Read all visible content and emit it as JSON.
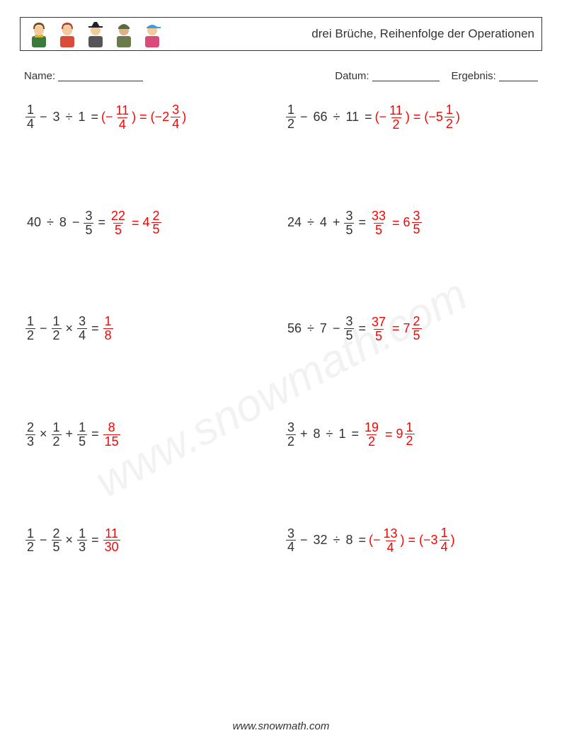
{
  "header": {
    "title": "drei Brüche, Reihenfolge der Operationen"
  },
  "meta": {
    "name_label": "Name:",
    "date_label": "Datum:",
    "result_label": "Ergebnis:"
  },
  "avatars": [
    {
      "skin": "#f4c99b",
      "hair": "#7a4a1d",
      "top": "#3a7a3a",
      "scarf": "#d6b23a"
    },
    {
      "skin": "#f4c99b",
      "hair": "#b6452c",
      "top": "#d94c3a"
    },
    {
      "skin": "#f4c99b",
      "hat": "#222222",
      "top": "#555555"
    },
    {
      "skin": "#e0b08a",
      "helmet": "#5a6a3a",
      "top": "#6a7a4a"
    },
    {
      "skin": "#f4c99b",
      "cap": "#3aa0d9",
      "top": "#d94c7a"
    }
  ],
  "problems": [
    {
      "expr": [
        {
          "t": "frac",
          "n": "1",
          "d": "4"
        },
        {
          "t": "op",
          "v": "−"
        },
        {
          "t": "int",
          "v": "3"
        },
        {
          "t": "op",
          "v": "÷"
        },
        {
          "t": "int",
          "v": "1"
        },
        {
          "t": "op",
          "v": "="
        }
      ],
      "ans": [
        {
          "t": "txt",
          "v": "(−"
        },
        {
          "t": "frac",
          "n": "11",
          "d": "4"
        },
        {
          "t": "txt",
          "v": ") = (−"
        },
        {
          "t": "mixed",
          "w": "2",
          "n": "3",
          "d": "4"
        },
        {
          "t": "txt",
          "v": ")"
        }
      ]
    },
    {
      "expr": [
        {
          "t": "frac",
          "n": "1",
          "d": "2"
        },
        {
          "t": "op",
          "v": "−"
        },
        {
          "t": "int",
          "v": "66"
        },
        {
          "t": "op",
          "v": "÷"
        },
        {
          "t": "int",
          "v": "11"
        },
        {
          "t": "op",
          "v": "="
        }
      ],
      "ans": [
        {
          "t": "txt",
          "v": "(−"
        },
        {
          "t": "frac",
          "n": "11",
          "d": "2"
        },
        {
          "t": "txt",
          "v": ") = (−"
        },
        {
          "t": "mixed",
          "w": "5",
          "n": "1",
          "d": "2"
        },
        {
          "t": "txt",
          "v": ")"
        }
      ]
    },
    {
      "expr": [
        {
          "t": "int",
          "v": "40"
        },
        {
          "t": "op",
          "v": "÷"
        },
        {
          "t": "int",
          "v": "8"
        },
        {
          "t": "op",
          "v": "−"
        },
        {
          "t": "frac",
          "n": "3",
          "d": "5"
        },
        {
          "t": "op",
          "v": "="
        }
      ],
      "ans": [
        {
          "t": "frac",
          "n": "22",
          "d": "5"
        },
        {
          "t": "txt",
          "v": " = "
        },
        {
          "t": "mixed",
          "w": "4",
          "n": "2",
          "d": "5"
        }
      ]
    },
    {
      "expr": [
        {
          "t": "int",
          "v": "24"
        },
        {
          "t": "op",
          "v": "÷"
        },
        {
          "t": "int",
          "v": "4"
        },
        {
          "t": "op",
          "v": "+"
        },
        {
          "t": "frac",
          "n": "3",
          "d": "5"
        },
        {
          "t": "op",
          "v": "="
        }
      ],
      "ans": [
        {
          "t": "frac",
          "n": "33",
          "d": "5"
        },
        {
          "t": "txt",
          "v": " = "
        },
        {
          "t": "mixed",
          "w": "6",
          "n": "3",
          "d": "5"
        }
      ]
    },
    {
      "expr": [
        {
          "t": "frac",
          "n": "1",
          "d": "2"
        },
        {
          "t": "op",
          "v": "−"
        },
        {
          "t": "frac",
          "n": "1",
          "d": "2"
        },
        {
          "t": "op",
          "v": "×"
        },
        {
          "t": "frac",
          "n": "3",
          "d": "4"
        },
        {
          "t": "op",
          "v": "="
        }
      ],
      "ans": [
        {
          "t": "frac",
          "n": "1",
          "d": "8"
        }
      ]
    },
    {
      "expr": [
        {
          "t": "int",
          "v": "56"
        },
        {
          "t": "op",
          "v": "÷"
        },
        {
          "t": "int",
          "v": "7"
        },
        {
          "t": "op",
          "v": "−"
        },
        {
          "t": "frac",
          "n": "3",
          "d": "5"
        },
        {
          "t": "op",
          "v": "="
        }
      ],
      "ans": [
        {
          "t": "frac",
          "n": "37",
          "d": "5"
        },
        {
          "t": "txt",
          "v": " = "
        },
        {
          "t": "mixed",
          "w": "7",
          "n": "2",
          "d": "5"
        }
      ]
    },
    {
      "expr": [
        {
          "t": "frac",
          "n": "2",
          "d": "3"
        },
        {
          "t": "op",
          "v": "×"
        },
        {
          "t": "frac",
          "n": "1",
          "d": "2"
        },
        {
          "t": "op",
          "v": "+"
        },
        {
          "t": "frac",
          "n": "1",
          "d": "5"
        },
        {
          "t": "op",
          "v": "="
        }
      ],
      "ans": [
        {
          "t": "frac",
          "n": "8",
          "d": "15"
        }
      ]
    },
    {
      "expr": [
        {
          "t": "frac",
          "n": "3",
          "d": "2"
        },
        {
          "t": "op",
          "v": "+"
        },
        {
          "t": "int",
          "v": "8"
        },
        {
          "t": "op",
          "v": "÷"
        },
        {
          "t": "int",
          "v": "1"
        },
        {
          "t": "op",
          "v": "="
        }
      ],
      "ans": [
        {
          "t": "frac",
          "n": "19",
          "d": "2"
        },
        {
          "t": "txt",
          "v": " = "
        },
        {
          "t": "mixed",
          "w": "9",
          "n": "1",
          "d": "2"
        }
      ]
    },
    {
      "expr": [
        {
          "t": "frac",
          "n": "1",
          "d": "2"
        },
        {
          "t": "op",
          "v": "−"
        },
        {
          "t": "frac",
          "n": "2",
          "d": "5"
        },
        {
          "t": "op",
          "v": "×"
        },
        {
          "t": "frac",
          "n": "1",
          "d": "3"
        },
        {
          "t": "op",
          "v": "="
        }
      ],
      "ans": [
        {
          "t": "frac",
          "n": "11",
          "d": "30"
        }
      ]
    },
    {
      "expr": [
        {
          "t": "frac",
          "n": "3",
          "d": "4"
        },
        {
          "t": "op",
          "v": "−"
        },
        {
          "t": "int",
          "v": "32"
        },
        {
          "t": "op",
          "v": "÷"
        },
        {
          "t": "int",
          "v": "8"
        },
        {
          "t": "op",
          "v": "="
        }
      ],
      "ans": [
        {
          "t": "txt",
          "v": "(−"
        },
        {
          "t": "frac",
          "n": "13",
          "d": "4"
        },
        {
          "t": "txt",
          "v": ") = (−"
        },
        {
          "t": "mixed",
          "w": "3",
          "n": "1",
          "d": "4"
        },
        {
          "t": "txt",
          "v": ")"
        }
      ]
    }
  ],
  "footer": "www.snowmath.com",
  "watermark": "www.snowmath.com"
}
